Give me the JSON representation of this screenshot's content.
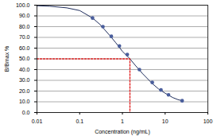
{
  "chart_data": {
    "type": "line",
    "x_label": "Concentration (ng/mL)",
    "y_label": "B/Bmax %",
    "log": "x",
    "grid": true,
    "xlim": [
      0.01,
      100
    ],
    "xticks": [
      0.01,
      0.1,
      1,
      10,
      100
    ],
    "ylim": [
      0,
      100
    ],
    "yticks": [
      {
        "value": 0,
        "label": "0.0"
      },
      {
        "value": 10,
        "label": "10.0"
      },
      {
        "value": 20,
        "label": "20.0"
      },
      {
        "value": 30,
        "label": "30.0"
      },
      {
        "value": 40,
        "label": "40.0"
      },
      {
        "value": 50,
        "label": "50.0"
      },
      {
        "value": 60,
        "label": "60.0"
      },
      {
        "value": 70,
        "label": "70.0"
      },
      {
        "value": 80,
        "label": "80.0"
      },
      {
        "value": 90,
        "label": "90.0"
      },
      {
        "value": 100,
        "label": "100.0"
      }
    ],
    "series": [
      {
        "type": "line",
        "color": "#1f2d5c",
        "line_style": "solid",
        "x": [
          0.01,
          0.02,
          0.05,
          0.1,
          0.2,
          0.3,
          0.5,
          0.7,
          1,
          1.5,
          2,
          3,
          5,
          7,
          10,
          15,
          20,
          25
        ],
        "values": [
          99.5,
          99,
          97.5,
          95,
          88,
          82,
          72,
          65,
          57,
          50,
          44,
          36,
          27,
          22,
          18,
          14,
          12,
          11
        ]
      },
      {
        "type": "scatter",
        "color": "#4a5e9c",
        "marker": "circle",
        "x": [
          0.2,
          0.35,
          0.55,
          0.85,
          1.3,
          2.5,
          5,
          8,
          12,
          25
        ],
        "values": [
          88,
          80,
          71,
          62,
          54,
          40,
          28,
          21,
          16.5,
          11
        ]
      },
      {
        "type": "line",
        "color": "#e02020",
        "line_style": "dotted",
        "x": [
          0.01,
          1.5,
          1.5
        ],
        "values": [
          50,
          50,
          0
        ]
      }
    ]
  }
}
